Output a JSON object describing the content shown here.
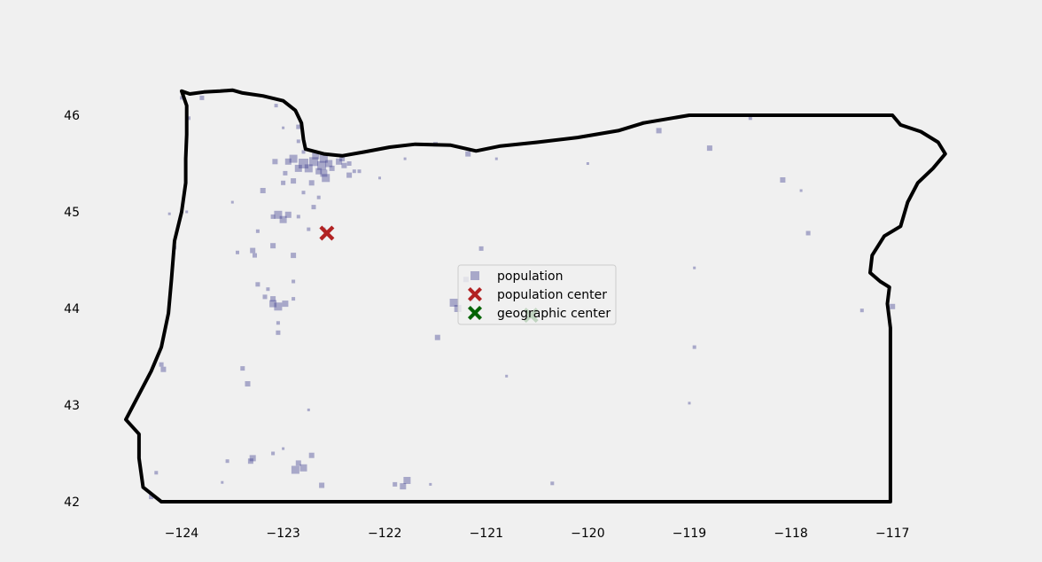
{
  "chart_data": {
    "type": "scatter",
    "title": "",
    "xlabel": "",
    "ylabel": "",
    "xlim": [
      -124.75,
      -116.25
    ],
    "ylim": [
      41.85,
      46.45
    ],
    "x_ticks": [
      -124,
      -123,
      -122,
      -121,
      -120,
      -119,
      -118,
      -117
    ],
    "x_tick_labels": [
      "−124",
      "−123",
      "−122",
      "−121",
      "−120",
      "−119",
      "−118",
      "−117"
    ],
    "y_ticks": [
      42,
      43,
      44,
      45,
      46
    ],
    "y_tick_labels": [
      "42",
      "43",
      "44",
      "45",
      "46"
    ],
    "grid": false,
    "legend_position": "center",
    "colors": {
      "background": "#f0f0f0",
      "population": "#3b3b8f",
      "population_center": "#b22222",
      "geographic_center": "#006400",
      "outline": "#000000"
    },
    "boundary": [
      [
        -124.0,
        46.25
      ],
      [
        -123.92,
        46.22
      ],
      [
        -123.78,
        46.24
      ],
      [
        -123.62,
        46.25
      ],
      [
        -123.5,
        46.26
      ],
      [
        -123.4,
        46.23
      ],
      [
        -123.2,
        46.2
      ],
      [
        -123.0,
        46.15
      ],
      [
        -122.88,
        46.05
      ],
      [
        -122.82,
        45.92
      ],
      [
        -122.8,
        45.75
      ],
      [
        -122.78,
        45.65
      ],
      [
        -122.6,
        45.6
      ],
      [
        -122.42,
        45.58
      ],
      [
        -122.2,
        45.62
      ],
      [
        -121.95,
        45.67
      ],
      [
        -121.7,
        45.7
      ],
      [
        -121.35,
        45.69
      ],
      [
        -121.1,
        45.63
      ],
      [
        -120.87,
        45.68
      ],
      [
        -120.5,
        45.72
      ],
      [
        -120.1,
        45.77
      ],
      [
        -119.7,
        45.84
      ],
      [
        -119.45,
        45.92
      ],
      [
        -119.0,
        46.0
      ],
      [
        -117.9,
        46.0
      ],
      [
        -117.0,
        46.0
      ],
      [
        -116.92,
        45.9
      ],
      [
        -116.72,
        45.83
      ],
      [
        -116.55,
        45.72
      ],
      [
        -116.48,
        45.6
      ],
      [
        -116.6,
        45.45
      ],
      [
        -116.75,
        45.3
      ],
      [
        -116.85,
        45.1
      ],
      [
        -116.92,
        44.85
      ],
      [
        -117.08,
        44.75
      ],
      [
        -117.2,
        44.55
      ],
      [
        -117.22,
        44.37
      ],
      [
        -117.12,
        44.28
      ],
      [
        -117.03,
        44.22
      ],
      [
        -117.05,
        44.05
      ],
      [
        -117.02,
        43.8
      ],
      [
        -117.02,
        42.0
      ],
      [
        -118.5,
        42.0
      ],
      [
        -120.0,
        42.0
      ],
      [
        -121.5,
        42.0
      ],
      [
        -123.0,
        42.0
      ],
      [
        -124.2,
        42.0
      ],
      [
        -124.38,
        42.15
      ],
      [
        -124.42,
        42.45
      ],
      [
        -124.42,
        42.7
      ],
      [
        -124.55,
        42.85
      ],
      [
        -124.45,
        43.05
      ],
      [
        -124.3,
        43.35
      ],
      [
        -124.2,
        43.6
      ],
      [
        -124.13,
        43.95
      ],
      [
        -124.1,
        44.3
      ],
      [
        -124.07,
        44.7
      ],
      [
        -124.0,
        45.0
      ],
      [
        -123.96,
        45.3
      ],
      [
        -123.96,
        45.55
      ],
      [
        -123.95,
        45.8
      ],
      [
        -123.95,
        46.1
      ],
      [
        -124.0,
        46.25
      ]
    ],
    "series": [
      {
        "name": "population",
        "marker": "square",
        "points": [
          [
            -122.9,
            45.55,
            9
          ],
          [
            -122.8,
            45.5,
            11
          ],
          [
            -122.7,
            45.52,
            10
          ],
          [
            -122.6,
            45.55,
            9
          ],
          [
            -122.55,
            45.5,
            8
          ],
          [
            -122.45,
            45.52,
            7
          ],
          [
            -122.4,
            45.48,
            6
          ],
          [
            -122.85,
            45.45,
            8
          ],
          [
            -122.75,
            45.45,
            9
          ],
          [
            -122.65,
            45.42,
            7
          ],
          [
            -122.62,
            45.48,
            10
          ],
          [
            -122.68,
            45.58,
            8
          ],
          [
            -122.52,
            45.45,
            6
          ],
          [
            -122.95,
            45.52,
            7
          ],
          [
            -122.6,
            45.4,
            8
          ],
          [
            -123.08,
            45.52,
            6
          ],
          [
            -122.98,
            45.4,
            5
          ],
          [
            -122.58,
            45.35,
            9
          ],
          [
            -122.35,
            45.5,
            5
          ],
          [
            -122.3,
            45.42,
            4
          ],
          [
            -122.9,
            45.32,
            6
          ],
          [
            -123.0,
            45.3,
            5
          ],
          [
            -122.72,
            45.3,
            6
          ],
          [
            -122.8,
            45.2,
            4
          ],
          [
            -122.65,
            45.15,
            4
          ],
          [
            -123.2,
            45.22,
            6
          ],
          [
            -122.7,
            45.05,
            5
          ],
          [
            -123.05,
            44.97,
            9
          ],
          [
            -123.0,
            44.92,
            8
          ],
          [
            -122.95,
            44.97,
            7
          ],
          [
            -122.85,
            44.95,
            4
          ],
          [
            -123.1,
            44.95,
            5
          ],
          [
            -123.25,
            44.8,
            4
          ],
          [
            -123.1,
            44.65,
            6
          ],
          [
            -122.9,
            44.55,
            6
          ],
          [
            -123.3,
            44.6,
            6
          ],
          [
            -123.28,
            44.55,
            5
          ],
          [
            -123.45,
            44.58,
            4
          ],
          [
            -123.1,
            44.05,
            8
          ],
          [
            -123.05,
            44.02,
            9
          ],
          [
            -122.98,
            44.05,
            7
          ],
          [
            -123.1,
            44.1,
            6
          ],
          [
            -122.9,
            44.1,
            4
          ],
          [
            -123.18,
            44.12,
            5
          ],
          [
            -123.25,
            44.25,
            5
          ],
          [
            -122.9,
            44.28,
            4
          ],
          [
            -123.05,
            43.85,
            4
          ],
          [
            -123.05,
            43.75,
            5
          ],
          [
            -123.4,
            43.38,
            5
          ],
          [
            -123.35,
            43.22,
            6
          ],
          [
            -122.75,
            42.95,
            3
          ],
          [
            -122.8,
            42.35,
            8
          ],
          [
            -122.88,
            42.33,
            9
          ],
          [
            -122.72,
            42.48,
            6
          ],
          [
            -122.85,
            42.4,
            6
          ],
          [
            -122.62,
            42.17,
            6
          ],
          [
            -123.3,
            42.45,
            7
          ],
          [
            -123.32,
            42.42,
            6
          ],
          [
            -123.1,
            42.5,
            4
          ],
          [
            -123.6,
            42.2,
            3
          ],
          [
            -124.18,
            43.37,
            6
          ],
          [
            -124.2,
            43.42,
            5
          ],
          [
            -124.07,
            44.63,
            4
          ],
          [
            -123.95,
            45.0,
            3
          ],
          [
            -124.12,
            44.98,
            3
          ],
          [
            -123.93,
            45.97,
            4
          ],
          [
            -123.8,
            46.18,
            5
          ],
          [
            -124.0,
            46.18,
            4
          ],
          [
            -123.07,
            46.1,
            4
          ],
          [
            -123.0,
            45.87,
            3
          ],
          [
            -122.85,
            45.88,
            5
          ],
          [
            -122.42,
            45.55,
            6
          ],
          [
            -122.35,
            45.38,
            6
          ],
          [
            -122.05,
            45.35,
            3
          ],
          [
            -121.8,
            45.55,
            3
          ],
          [
            -121.5,
            45.7,
            5
          ],
          [
            -121.18,
            45.6,
            6
          ],
          [
            -120.9,
            45.55,
            3
          ],
          [
            -120.0,
            45.5,
            3
          ],
          [
            -119.45,
            45.92,
            4
          ],
          [
            -119.3,
            45.84,
            6
          ],
          [
            -118.8,
            45.66,
            6
          ],
          [
            -118.4,
            45.97,
            4
          ],
          [
            -118.08,
            45.33,
            6
          ],
          [
            -117.9,
            45.22,
            3
          ],
          [
            -117.83,
            44.78,
            5
          ],
          [
            -117.0,
            44.02,
            6
          ],
          [
            -117.3,
            43.98,
            4
          ],
          [
            -118.95,
            44.42,
            3
          ],
          [
            -118.95,
            43.6,
            4
          ],
          [
            -119.0,
            43.02,
            3
          ],
          [
            -120.55,
            44.3,
            3
          ],
          [
            -121.05,
            44.62,
            5
          ],
          [
            -121.32,
            44.06,
            9
          ],
          [
            -121.28,
            44.0,
            8
          ],
          [
            -121.2,
            44.3,
            6
          ],
          [
            -121.15,
            44.1,
            5
          ],
          [
            -120.8,
            43.3,
            3
          ],
          [
            -121.48,
            43.7,
            6
          ],
          [
            -121.78,
            42.22,
            8
          ],
          [
            -121.82,
            42.16,
            7
          ],
          [
            -121.9,
            42.18,
            5
          ],
          [
            -121.55,
            42.18,
            3
          ],
          [
            -120.35,
            42.19,
            4
          ],
          [
            -124.3,
            42.05,
            5
          ],
          [
            -124.25,
            42.3,
            4
          ],
          [
            -123.55,
            42.42,
            4
          ],
          [
            -123.0,
            42.55,
            3
          ],
          [
            -122.6,
            44.82,
            4
          ],
          [
            -122.75,
            44.82,
            4
          ],
          [
            -123.15,
            44.2,
            4
          ],
          [
            -122.85,
            45.73,
            4
          ],
          [
            -122.8,
            45.62,
            4
          ],
          [
            -122.25,
            45.42,
            4
          ],
          [
            -123.5,
            45.1,
            3
          ]
        ]
      },
      {
        "name": "population center",
        "marker": "x",
        "points": [
          [
            -122.57,
            44.78
          ]
        ]
      },
      {
        "name": "geographic center",
        "marker": "x",
        "points": [
          [
            -120.56,
            43.93
          ]
        ]
      }
    ]
  }
}
